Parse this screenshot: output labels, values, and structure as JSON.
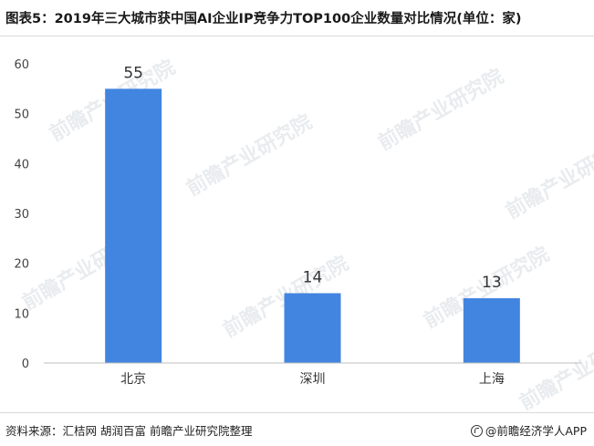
{
  "header": {
    "title": "图表5：2019年三大城市获中国AI企业IP竞争力TOP100企业数量对比情况(单位：家)"
  },
  "chart_data": {
    "type": "bar",
    "categories": [
      "北京",
      "深圳",
      "上海"
    ],
    "values": [
      55,
      14,
      13
    ],
    "title": "图表5：2019年三大城市获中国AI企业IP竞争力TOP100企业数量对比情况(单位：家)",
    "xlabel": "",
    "ylabel": "",
    "ylim": [
      0,
      60
    ],
    "yticks": [
      0,
      10,
      20,
      30,
      40,
      50,
      60
    ],
    "grid": false,
    "legend": "none",
    "bar_color": "#4285e0",
    "data_labels": true
  },
  "watermark": {
    "text": "前瞻产业研究院"
  },
  "footer": {
    "source": "资料来源：汇桔网 胡润百富 前瞻产业研究院整理",
    "brand": "@前瞻经济学人APP"
  }
}
